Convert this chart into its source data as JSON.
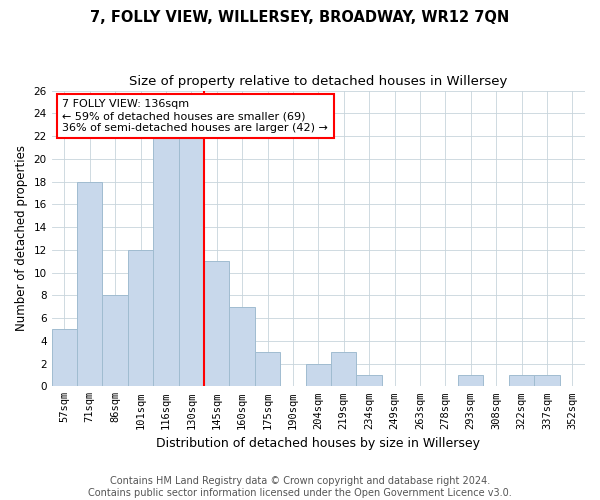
{
  "title": "7, FOLLY VIEW, WILLERSEY, BROADWAY, WR12 7QN",
  "subtitle": "Size of property relative to detached houses in Willersey",
  "xlabel": "Distribution of detached houses by size in Willersey",
  "ylabel": "Number of detached properties",
  "bar_labels": [
    "57sqm",
    "71sqm",
    "86sqm",
    "101sqm",
    "116sqm",
    "130sqm",
    "145sqm",
    "160sqm",
    "175sqm",
    "190sqm",
    "204sqm",
    "219sqm",
    "234sqm",
    "249sqm",
    "263sqm",
    "278sqm",
    "293sqm",
    "308sqm",
    "322sqm",
    "337sqm",
    "352sqm"
  ],
  "bar_values": [
    5,
    18,
    8,
    12,
    22,
    22,
    11,
    7,
    3,
    0,
    2,
    3,
    1,
    0,
    0,
    0,
    1,
    0,
    1,
    1,
    0
  ],
  "bar_color": "#c8d8eb",
  "bar_edgecolor": "#a0bcd0",
  "vline_color": "red",
  "annotation_text": "7 FOLLY VIEW: 136sqm\n← 59% of detached houses are smaller (69)\n36% of semi-detached houses are larger (42) →",
  "annotation_box_color": "white",
  "annotation_box_edgecolor": "red",
  "ylim": [
    0,
    26
  ],
  "yticks": [
    0,
    2,
    4,
    6,
    8,
    10,
    12,
    14,
    16,
    18,
    20,
    22,
    24,
    26
  ],
  "footer_text": "Contains HM Land Registry data © Crown copyright and database right 2024.\nContains public sector information licensed under the Open Government Licence v3.0.",
  "title_fontsize": 10.5,
  "subtitle_fontsize": 9.5,
  "xlabel_fontsize": 9,
  "ylabel_fontsize": 8.5,
  "tick_fontsize": 7.5,
  "annotation_fontsize": 8,
  "footer_fontsize": 7,
  "background_color": "#ffffff",
  "grid_color": "#c8d4dc"
}
